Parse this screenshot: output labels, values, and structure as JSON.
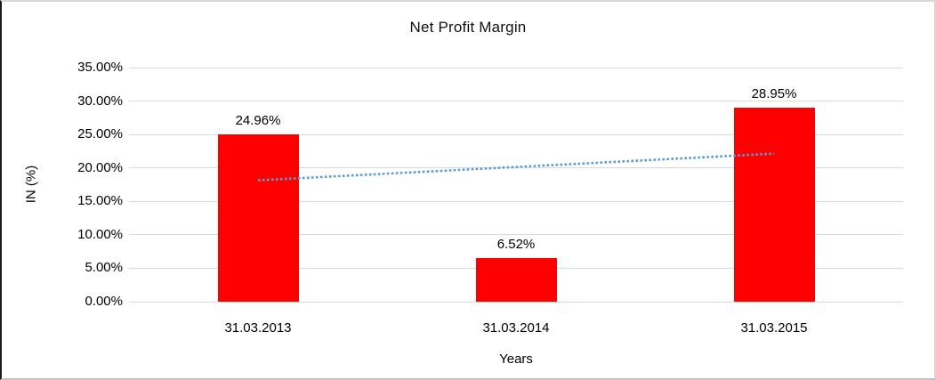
{
  "chart_data": {
    "type": "bar",
    "title": "Net Profit Margin",
    "xlabel": "Years",
    "ylabel": "IN (%)",
    "categories": [
      "31.03.2013",
      "31.03.2014",
      "31.03.2015"
    ],
    "values": [
      24.96,
      6.52,
      28.95
    ],
    "value_labels": [
      "24.96%",
      "6.52%",
      "28.95%"
    ],
    "ylim": [
      0,
      35
    ],
    "ytick_values": [
      0,
      5,
      10,
      15,
      20,
      25,
      30,
      35
    ],
    "ytick_labels": [
      "0.00%",
      "5.00%",
      "10.00%",
      "15.00%",
      "20.00%",
      "25.00%",
      "30.00%",
      "35.00%"
    ],
    "grid": true,
    "legend": false,
    "bar_color": "#ff0000",
    "gridline_color": "#d9d9d9",
    "trendline": {
      "type": "linear",
      "style": "dotted",
      "color": "#5b9bd5",
      "start_value": 18.15,
      "end_value": 22.14
    }
  }
}
